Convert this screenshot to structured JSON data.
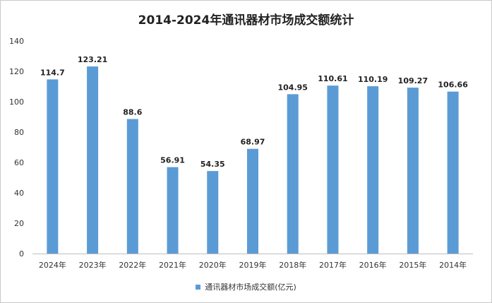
{
  "chart_data": {
    "type": "bar",
    "title": "2014-2024年通讯器材市场成交额统计",
    "categories": [
      "2024年",
      "2023年",
      "2022年",
      "2021年",
      "2020年",
      "2019年",
      "2018年",
      "2017年",
      "2016年",
      "2015年",
      "2014年"
    ],
    "series": [
      {
        "name": "通讯器材市场成交额(亿元)",
        "values": [
          114.7,
          123.21,
          88.6,
          56.91,
          54.35,
          68.97,
          104.95,
          110.61,
          110.19,
          109.27,
          106.66
        ],
        "value_labels": [
          "114.7",
          "123.21",
          "88.6",
          "56.91",
          "54.35",
          "68.97",
          "104.95",
          "110.61",
          "110.19",
          "109.27",
          "106.66"
        ],
        "color": "#5b9bd5"
      }
    ],
    "y_ticks": [
      "0",
      "20",
      "40",
      "60",
      "80",
      "100",
      "120",
      "140"
    ],
    "ylim": [
      0,
      140
    ],
    "grid": false,
    "legend_position": "bottom"
  }
}
